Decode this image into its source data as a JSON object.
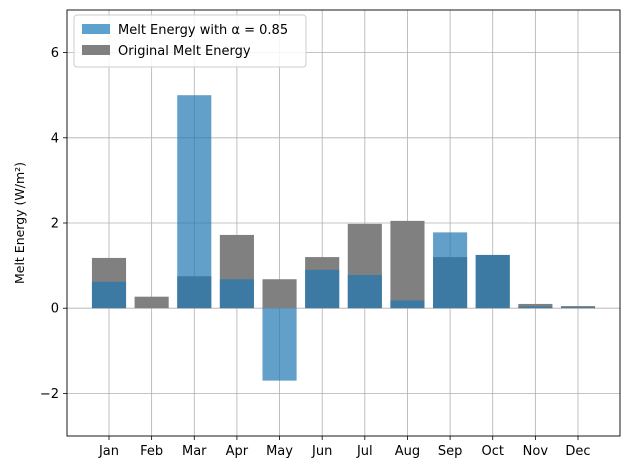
{
  "chart_data": {
    "type": "bar",
    "categories": [
      "Jan",
      "Feb",
      "Mar",
      "Apr",
      "May",
      "Jun",
      "Jul",
      "Aug",
      "Sep",
      "Oct",
      "Nov",
      "Dec"
    ],
    "series": [
      {
        "name": "Original Melt Energy",
        "values": [
          1.18,
          0.27,
          0.75,
          1.72,
          0.68,
          1.2,
          1.98,
          2.05,
          1.2,
          1.25,
          0.1,
          0.05
        ],
        "color": "#808080"
      },
      {
        "name": "Melt Energy with α = 0.85",
        "values": [
          0.62,
          0.0,
          5.0,
          0.68,
          -1.7,
          0.9,
          0.78,
          0.18,
          1.78,
          1.25,
          0.04,
          0.02
        ],
        "color": "#1f77b4"
      }
    ],
    "title": "",
    "xlabel": "",
    "ylabel": "Melt Energy (W/m²)",
    "ylim": [
      -3,
      7
    ],
    "yticks": [
      -2,
      0,
      2,
      4,
      6
    ],
    "ytick_labels": [
      "−2",
      "0",
      "2",
      "4",
      "6"
    ],
    "grid": true,
    "legend_position": "upper-left",
    "legend": [
      {
        "label": "Melt Energy with α = 0.85",
        "color": "#5ea1cf"
      },
      {
        "label": "Original Melt Energy",
        "color": "#808080"
      }
    ]
  }
}
